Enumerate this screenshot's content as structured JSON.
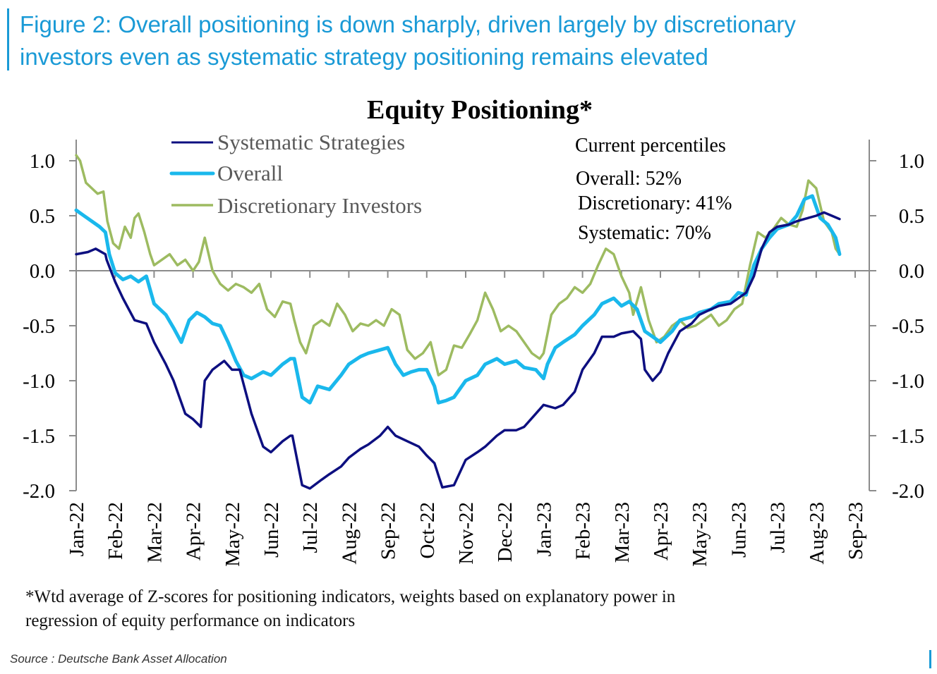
{
  "figure": {
    "title_line1": "Figure 2: Overall positioning is down sharply, driven largely by discretionary",
    "title_line2": "investors even as systematic strategy positioning remains elevated",
    "footnote_line1": "*Wtd average of Z-scores for positioning indicators, weights based on explanatory power in",
    "footnote_line2": "regression of equity performance on indicators",
    "source": "Source : Deutsche Bank Asset Allocation",
    "accent_color": "#1a9ad6"
  },
  "chart_data": {
    "type": "line",
    "title": "Equity Positioning*",
    "xlabel": "",
    "ylabel": "",
    "ylim": [
      -2.0,
      1.0
    ],
    "xlim_months": [
      0,
      20
    ],
    "grid": false,
    "legend_position": "top-left",
    "y_ticks": [
      "1.0",
      "0.5",
      "0.0",
      "-0.5",
      "-1.0",
      "-1.5",
      "-2.0"
    ],
    "y_tick_values": [
      1.0,
      0.5,
      0.0,
      -0.5,
      -1.0,
      -1.5,
      -2.0
    ],
    "x_tick_labels": [
      "Jan-22",
      "Feb-22",
      "Mar-22",
      "Apr-22",
      "May-22",
      "Jun-22",
      "Jul-22",
      "Aug-22",
      "Sep-22",
      "Oct-22",
      "Nov-22",
      "Dec-22",
      "Jan-23",
      "Feb-23",
      "Mar-23",
      "Apr-23",
      "May-23",
      "Jun-23",
      "Jul-23",
      "Aug-23",
      "Sep-23"
    ],
    "annotation": {
      "heading": "Current percentiles",
      "lines": [
        "Overall: 52%",
        "Discretionary: 41%",
        "Systematic: 70%"
      ]
    },
    "series": [
      {
        "name": "Systematic Strategies",
        "color": "#0d0f80",
        "x_months": [
          0,
          0.3,
          0.5,
          0.75,
          0.78,
          1.0,
          1.2,
          1.5,
          1.8,
          2.0,
          2.3,
          2.5,
          2.8,
          3.0,
          3.2,
          3.3,
          3.5,
          3.8,
          4.0,
          4.2,
          4.5,
          4.8,
          5.0,
          5.3,
          5.5,
          5.55,
          5.8,
          6.0,
          6.3,
          6.5,
          6.8,
          7.0,
          7.3,
          7.5,
          7.8,
          8.0,
          8.2,
          8.5,
          8.8,
          9.0,
          9.2,
          9.4,
          9.7,
          10.0,
          10.3,
          10.5,
          10.8,
          11.0,
          11.3,
          11.5,
          11.8,
          12.0,
          12.3,
          12.5,
          12.8,
          13.0,
          13.3,
          13.5,
          13.8,
          14.0,
          14.3,
          14.5,
          14.6,
          14.8,
          15.0,
          15.2,
          15.5,
          15.8,
          16.0,
          16.3,
          16.5,
          16.8,
          17.0,
          17.2,
          17.4,
          17.6,
          17.8,
          18.0,
          18.3,
          18.5,
          18.8,
          19.0,
          19.2,
          19.4,
          19.6
        ],
        "values": [
          0.15,
          0.17,
          0.2,
          0.15,
          0.1,
          -0.1,
          -0.25,
          -0.45,
          -0.48,
          -0.65,
          -0.85,
          -1.0,
          -1.3,
          -1.35,
          -1.42,
          -1.0,
          -0.9,
          -0.82,
          -0.9,
          -0.9,
          -1.3,
          -1.6,
          -1.65,
          -1.55,
          -1.5,
          -1.5,
          -1.95,
          -1.98,
          -1.9,
          -1.85,
          -1.78,
          -1.7,
          -1.62,
          -1.58,
          -1.5,
          -1.42,
          -1.5,
          -1.55,
          -1.6,
          -1.68,
          -1.75,
          -1.97,
          -1.95,
          -1.72,
          -1.65,
          -1.6,
          -1.5,
          -1.45,
          -1.45,
          -1.42,
          -1.3,
          -1.22,
          -1.25,
          -1.22,
          -1.1,
          -0.9,
          -0.75,
          -0.6,
          -0.6,
          -0.57,
          -0.55,
          -0.62,
          -0.9,
          -1.0,
          -0.92,
          -0.75,
          -0.55,
          -0.48,
          -0.4,
          -0.35,
          -0.32,
          -0.3,
          -0.25,
          -0.2,
          -0.05,
          0.2,
          0.35,
          0.4,
          0.42,
          0.45,
          0.48,
          0.5,
          0.53,
          0.5,
          0.47
        ]
      },
      {
        "name": "Overall",
        "color": "#1ab8ec",
        "x_months": [
          0,
          0.2,
          0.4,
          0.6,
          0.75,
          0.85,
          1.0,
          1.2,
          1.4,
          1.6,
          1.8,
          2.0,
          2.3,
          2.5,
          2.7,
          2.9,
          3.1,
          3.3,
          3.5,
          3.7,
          3.9,
          4.1,
          4.3,
          4.5,
          4.8,
          5.0,
          5.3,
          5.5,
          5.6,
          5.8,
          6.0,
          6.2,
          6.5,
          6.8,
          7.0,
          7.3,
          7.5,
          7.8,
          8.0,
          8.2,
          8.4,
          8.6,
          8.8,
          9.0,
          9.2,
          9.3,
          9.5,
          9.7,
          10.0,
          10.3,
          10.5,
          10.8,
          11.0,
          11.3,
          11.5,
          11.8,
          12.0,
          12.1,
          12.3,
          12.5,
          12.8,
          13.0,
          13.3,
          13.5,
          13.8,
          14.0,
          14.2,
          14.4,
          14.6,
          14.8,
          15.0,
          15.3,
          15.5,
          15.8,
          16.0,
          16.3,
          16.5,
          16.8,
          17.0,
          17.2,
          17.4,
          17.6,
          17.8,
          18.0,
          18.3,
          18.5,
          18.7,
          18.9,
          19.1,
          19.3,
          19.5,
          19.6
        ],
        "values": [
          0.55,
          0.5,
          0.45,
          0.4,
          0.35,
          0.15,
          -0.02,
          -0.08,
          -0.05,
          -0.1,
          -0.05,
          -0.3,
          -0.4,
          -0.52,
          -0.65,
          -0.45,
          -0.38,
          -0.42,
          -0.48,
          -0.5,
          -0.65,
          -0.82,
          -0.95,
          -0.98,
          -0.92,
          -0.95,
          -0.85,
          -0.8,
          -0.8,
          -1.15,
          -1.2,
          -1.05,
          -1.08,
          -0.95,
          -0.85,
          -0.78,
          -0.75,
          -0.72,
          -0.7,
          -0.85,
          -0.95,
          -0.92,
          -0.9,
          -0.9,
          -1.05,
          -1.2,
          -1.18,
          -1.15,
          -1.0,
          -0.95,
          -0.85,
          -0.8,
          -0.85,
          -0.82,
          -0.88,
          -0.9,
          -0.98,
          -0.85,
          -0.7,
          -0.65,
          -0.58,
          -0.5,
          -0.4,
          -0.3,
          -0.25,
          -0.32,
          -0.28,
          -0.35,
          -0.55,
          -0.6,
          -0.65,
          -0.55,
          -0.45,
          -0.42,
          -0.38,
          -0.35,
          -0.3,
          -0.28,
          -0.2,
          -0.22,
          0.05,
          0.2,
          0.3,
          0.38,
          0.42,
          0.5,
          0.65,
          0.68,
          0.48,
          0.42,
          0.3,
          0.15
        ]
      },
      {
        "name": "Discretionary Investors",
        "color": "#9dbb61",
        "x_months": [
          0,
          0.1,
          0.25,
          0.4,
          0.55,
          0.7,
          0.8,
          0.95,
          1.1,
          1.25,
          1.4,
          1.5,
          1.6,
          1.75,
          1.9,
          2.0,
          2.2,
          2.4,
          2.6,
          2.8,
          3.0,
          3.15,
          3.3,
          3.5,
          3.7,
          3.9,
          4.1,
          4.3,
          4.5,
          4.7,
          4.9,
          5.1,
          5.3,
          5.5,
          5.6,
          5.75,
          5.9,
          6.1,
          6.3,
          6.5,
          6.7,
          6.9,
          7.1,
          7.3,
          7.5,
          7.7,
          7.9,
          8.1,
          8.3,
          8.5,
          8.7,
          8.9,
          9.1,
          9.3,
          9.5,
          9.7,
          9.9,
          10.1,
          10.3,
          10.5,
          10.7,
          10.9,
          11.1,
          11.3,
          11.5,
          11.7,
          11.9,
          12.0,
          12.2,
          12.4,
          12.6,
          12.8,
          13.0,
          13.2,
          13.4,
          13.6,
          13.8,
          14.0,
          14.2,
          14.3,
          14.5,
          14.7,
          14.9,
          15.1,
          15.3,
          15.5,
          15.7,
          15.9,
          16.1,
          16.3,
          16.5,
          16.7,
          16.9,
          17.1,
          17.3,
          17.5,
          17.7,
          17.9,
          18.1,
          18.3,
          18.5,
          18.65,
          18.8,
          19.0,
          19.2,
          19.4,
          19.5,
          19.6
        ],
        "values": [
          1.05,
          1.0,
          0.8,
          0.75,
          0.7,
          0.72,
          0.45,
          0.25,
          0.2,
          0.4,
          0.3,
          0.48,
          0.52,
          0.35,
          0.15,
          0.05,
          0.1,
          0.15,
          0.05,
          0.1,
          0.0,
          0.08,
          0.3,
          0.0,
          -0.12,
          -0.18,
          -0.12,
          -0.15,
          -0.2,
          -0.12,
          -0.35,
          -0.42,
          -0.28,
          -0.3,
          -0.45,
          -0.65,
          -0.75,
          -0.5,
          -0.45,
          -0.5,
          -0.3,
          -0.4,
          -0.55,
          -0.48,
          -0.5,
          -0.45,
          -0.5,
          -0.35,
          -0.4,
          -0.72,
          -0.8,
          -0.75,
          -0.65,
          -0.95,
          -0.9,
          -0.68,
          -0.7,
          -0.58,
          -0.45,
          -0.2,
          -0.35,
          -0.55,
          -0.5,
          -0.55,
          -0.65,
          -0.75,
          -0.8,
          -0.75,
          -0.4,
          -0.3,
          -0.25,
          -0.15,
          -0.2,
          -0.12,
          0.05,
          0.2,
          0.15,
          -0.05,
          -0.2,
          -0.4,
          -0.15,
          -0.45,
          -0.65,
          -0.6,
          -0.5,
          -0.45,
          -0.52,
          -0.5,
          -0.45,
          -0.4,
          -0.5,
          -0.45,
          -0.35,
          -0.3,
          0.05,
          0.35,
          0.3,
          0.38,
          0.48,
          0.42,
          0.4,
          0.55,
          0.82,
          0.75,
          0.45,
          0.35,
          0.2,
          0.15,
          -0.05
        ]
      }
    ]
  }
}
